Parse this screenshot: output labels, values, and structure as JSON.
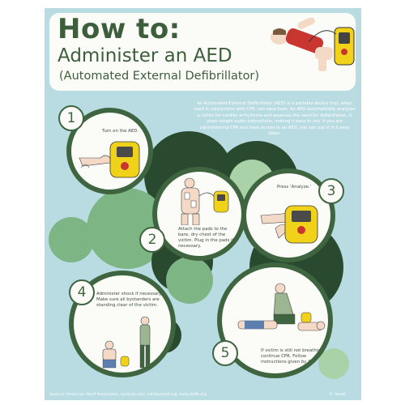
{
  "header": {
    "title": "How to:",
    "subtitle": "Administer an AED",
    "subtitle2": "(Automated External Defibrillator)"
  },
  "intro": "An Automated External Defibrillator (AED) is a portable device that, when used in conjunction with CPR, can save lives.  An AED automatically analyzes a victim for cardiac arrhythmia and assesses the need for defibrillation.  It gives simple audio instructions, making it easy to use.  If you  are administering CPR and have access to  an AED, you can use it in 5 easy steps.",
  "steps": [
    {
      "number": "1",
      "text": "Turn on the AED."
    },
    {
      "number": "2",
      "text": "Attach the pads to the bare, dry chest of the victim.  Plug in the pads if necessary."
    },
    {
      "number": "3",
      "text": "Press ‘Analyze.’"
    },
    {
      "number": "4",
      "text": "Administer shock if necessary. Make sure all bystanders are standing clear of the victim."
    },
    {
      "number": "5",
      "text": "If victim is still not breathing, continue CPR.  Follow instructions given by AED."
    }
  ],
  "footer": {
    "sources": "Sources: American Heart Association, cprdude.com, cardiosmart.org, early-defib.org",
    "author": "R. Twedt"
  },
  "colors": {
    "background": "#b9dce3",
    "dark_green": "#3f6540",
    "mid_green": "#7eb585",
    "pale_green": "#a9d2a8",
    "darkest_green": "#2a4a30",
    "aed_yellow": "#f1d21b",
    "shirt_red": "#c9362f"
  }
}
